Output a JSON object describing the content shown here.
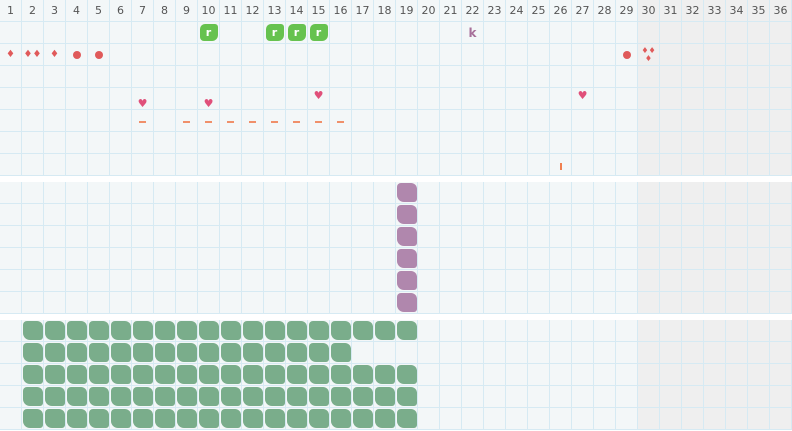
{
  "days": [
    1,
    2,
    3,
    4,
    5,
    6,
    7,
    8,
    9,
    10,
    11,
    12,
    13,
    14,
    15,
    16,
    17,
    18,
    19,
    20,
    21,
    22,
    23,
    24,
    25,
    26,
    27,
    28,
    29,
    30,
    31,
    32,
    33,
    34,
    35,
    36
  ],
  "future_from_day": 30,
  "colors": {
    "grid_bg": "#f3f7f8",
    "grid_line": "#d6eaf3",
    "future_bg": "#efefef",
    "green": "#7aad8b",
    "purple": "#b087ad",
    "badge_green": "#66c24f",
    "blood": "#e05a5a",
    "heart": "#e0507a",
    "orange": "#f0906a"
  },
  "section1": {
    "rows": [
      {
        "markers": [
          {
            "day": 10,
            "type": "badge",
            "text": "r"
          },
          {
            "day": 13,
            "type": "badge",
            "text": "r"
          },
          {
            "day": 14,
            "type": "badge",
            "text": "r"
          },
          {
            "day": 15,
            "type": "badge",
            "text": "r"
          },
          {
            "day": 22,
            "type": "letter",
            "text": "k"
          }
        ]
      },
      {
        "markers": [
          {
            "day": 1,
            "type": "drop",
            "count": 1
          },
          {
            "day": 2,
            "type": "drop",
            "count": 2
          },
          {
            "day": 3,
            "type": "drop",
            "count": 1
          },
          {
            "day": 4,
            "type": "dot"
          },
          {
            "day": 5,
            "type": "dot"
          },
          {
            "day": 29,
            "type": "dot"
          },
          {
            "day": 30,
            "type": "drop",
            "count": 3
          }
        ]
      },
      {
        "markers": []
      },
      {
        "markers": [
          {
            "day": 7,
            "type": "heart"
          },
          {
            "day": 10,
            "type": "heart"
          },
          {
            "day": 15,
            "type": "heart"
          },
          {
            "day": 27,
            "type": "heart"
          }
        ]
      },
      {
        "markers": [
          {
            "day": 7,
            "type": "dash"
          },
          {
            "day": 9,
            "type": "dash"
          },
          {
            "day": 10,
            "type": "dash"
          },
          {
            "day": 11,
            "type": "dash"
          },
          {
            "day": 12,
            "type": "dash"
          },
          {
            "day": 13,
            "type": "dash"
          },
          {
            "day": 14,
            "type": "dash"
          },
          {
            "day": 15,
            "type": "dash"
          },
          {
            "day": 16,
            "type": "dash"
          }
        ]
      },
      {
        "markers": []
      },
      {
        "markers": [
          {
            "day": 26,
            "type": "bar"
          }
        ]
      }
    ]
  },
  "section2": {
    "rows": 6,
    "filled": {
      "color": "purple",
      "day_ranges": [
        [
          19,
          19
        ],
        [
          19,
          19
        ],
        [
          19,
          19
        ],
        [
          19,
          19
        ],
        [
          19,
          19
        ],
        [
          19,
          19
        ]
      ]
    }
  },
  "section3": {
    "rows": 5,
    "filled": {
      "color": "green",
      "day_ranges": [
        [
          2,
          19
        ],
        [
          2,
          16
        ],
        [
          2,
          19
        ],
        [
          2,
          19
        ],
        [
          2,
          19
        ]
      ]
    }
  }
}
